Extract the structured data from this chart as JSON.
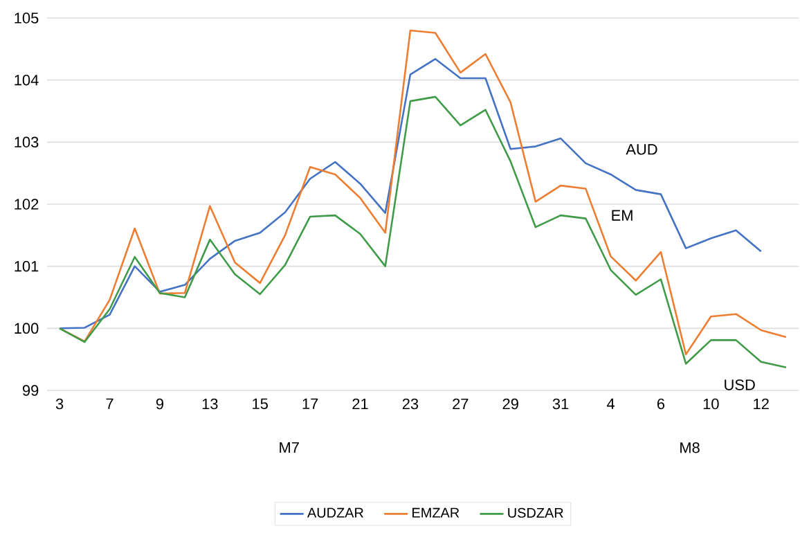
{
  "chart_data": {
    "type": "line",
    "categories": [
      "3",
      null,
      "7",
      null,
      "9",
      null,
      "13",
      null,
      "15",
      null,
      "17",
      null,
      "21",
      null,
      "23",
      null,
      "27",
      null,
      "29",
      null,
      "31",
      null,
      "4",
      null,
      "6",
      null,
      "10",
      null,
      "12",
      null
    ],
    "series": [
      {
        "name": "AUDZAR",
        "color": "#4472c4",
        "values": [
          100.0,
          100.01,
          100.22,
          101.0,
          100.59,
          100.7,
          101.12,
          101.41,
          101.54,
          101.87,
          102.41,
          102.68,
          102.33,
          101.86,
          104.09,
          104.34,
          104.03,
          104.03,
          102.89,
          102.93,
          103.06,
          102.66,
          102.48,
          102.23,
          102.16,
          101.29,
          101.45,
          101.58,
          101.24,
          null
        ]
      },
      {
        "name": "EMZAR",
        "color": "#ed7d31",
        "values": [
          100.0,
          99.79,
          100.46,
          101.61,
          100.56,
          100.57,
          101.97,
          101.06,
          100.73,
          101.5,
          102.6,
          102.48,
          102.1,
          101.54,
          104.8,
          104.76,
          104.12,
          104.42,
          103.64,
          102.04,
          102.3,
          102.25,
          101.16,
          100.77,
          101.23,
          99.58,
          100.19,
          100.23,
          99.97,
          99.86
        ]
      },
      {
        "name": "USDZAR",
        "color": "#3f9b48",
        "values": [
          100.0,
          99.78,
          100.31,
          101.15,
          100.57,
          100.5,
          101.43,
          100.87,
          100.55,
          101.02,
          101.8,
          101.82,
          101.52,
          101.0,
          103.66,
          103.73,
          103.27,
          103.52,
          102.69,
          101.63,
          101.82,
          101.77,
          100.94,
          100.54,
          100.79,
          99.43,
          99.81,
          99.81,
          99.46,
          99.37
        ]
      }
    ],
    "ylim": [
      99,
      105
    ],
    "yticks": [
      99,
      100,
      101,
      102,
      103,
      104,
      105
    ],
    "grid": "y",
    "legend": "bottom",
    "marker": "none",
    "line_style": "solid",
    "annotations": [
      "M7",
      "M8",
      "AUD",
      "EM",
      "USD"
    ]
  }
}
